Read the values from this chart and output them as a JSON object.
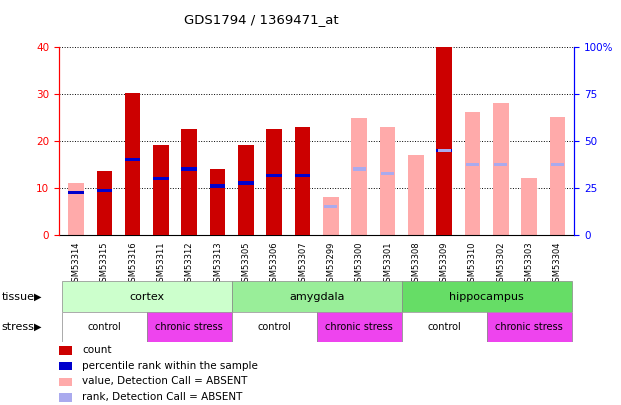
{
  "title": "GDS1794 / 1369471_at",
  "samples": [
    "GSM53314",
    "GSM53315",
    "GSM53316",
    "GSM53311",
    "GSM53312",
    "GSM53313",
    "GSM53305",
    "GSM53306",
    "GSM53307",
    "GSM53299",
    "GSM53300",
    "GSM53301",
    "GSM53308",
    "GSM53309",
    "GSM53310",
    "GSM53302",
    "GSM53303",
    "GSM53304"
  ],
  "red_values": [
    0,
    13.5,
    30.2,
    19.0,
    22.5,
    14.0,
    19.0,
    22.5,
    23.0,
    0,
    0,
    0,
    0,
    40.0,
    0,
    0,
    0,
    0
  ],
  "pink_values_pct": [
    27.5,
    0,
    0,
    0,
    0,
    0,
    0,
    0,
    0,
    20.0,
    62.0,
    57.5,
    42.5,
    0,
    65.0,
    70.0,
    30.0,
    62.5
  ],
  "blue_pct": [
    22.5,
    23.5,
    40.0,
    30.0,
    35.0,
    26.0,
    27.5,
    31.5,
    31.5,
    0,
    0,
    0,
    0,
    45.0,
    0,
    0,
    0,
    0
  ],
  "lightblue_pct": [
    0,
    0,
    0,
    0,
    0,
    0,
    0,
    0,
    0,
    15.0,
    35.0,
    32.5,
    0,
    45.0,
    37.5,
    37.5,
    0,
    37.5
  ],
  "ylim_left": [
    0,
    40
  ],
  "ylim_right": [
    0,
    100
  ],
  "yticks_left": [
    0,
    10,
    20,
    30,
    40
  ],
  "yticks_right": [
    0,
    25,
    50,
    75,
    100
  ],
  "ytick_labels_right": [
    "0",
    "25",
    "50",
    "75",
    "100%"
  ],
  "tissue_groups": [
    {
      "label": "cortex",
      "start": 0,
      "end": 6,
      "color": "#ccffcc"
    },
    {
      "label": "amygdala",
      "start": 6,
      "end": 12,
      "color": "#99ee99"
    },
    {
      "label": "hippocampus",
      "start": 12,
      "end": 18,
      "color": "#66dd66"
    }
  ],
  "stress_groups": [
    {
      "label": "control",
      "start": 0,
      "end": 3,
      "color": "#ffffff"
    },
    {
      "label": "chronic stress",
      "start": 3,
      "end": 6,
      "color": "#ee44ee"
    },
    {
      "label": "control",
      "start": 6,
      "end": 9,
      "color": "#ffffff"
    },
    {
      "label": "chronic stress",
      "start": 9,
      "end": 12,
      "color": "#ee44ee"
    },
    {
      "label": "control",
      "start": 12,
      "end": 15,
      "color": "#ffffff"
    },
    {
      "label": "chronic stress",
      "start": 15,
      "end": 18,
      "color": "#ee44ee"
    }
  ],
  "legend_items": [
    {
      "label": "count",
      "color": "#cc0000"
    },
    {
      "label": "percentile rank within the sample",
      "color": "#0000cc"
    },
    {
      "label": "value, Detection Call = ABSENT",
      "color": "#ffaaaa"
    },
    {
      "label": "rank, Detection Call = ABSENT",
      "color": "#aaaaee"
    }
  ],
  "bar_width": 0.55,
  "red_color": "#cc0000",
  "pink_color": "#ffaaaa",
  "blue_color": "#0000cc",
  "lightblue_color": "#aaaaee"
}
